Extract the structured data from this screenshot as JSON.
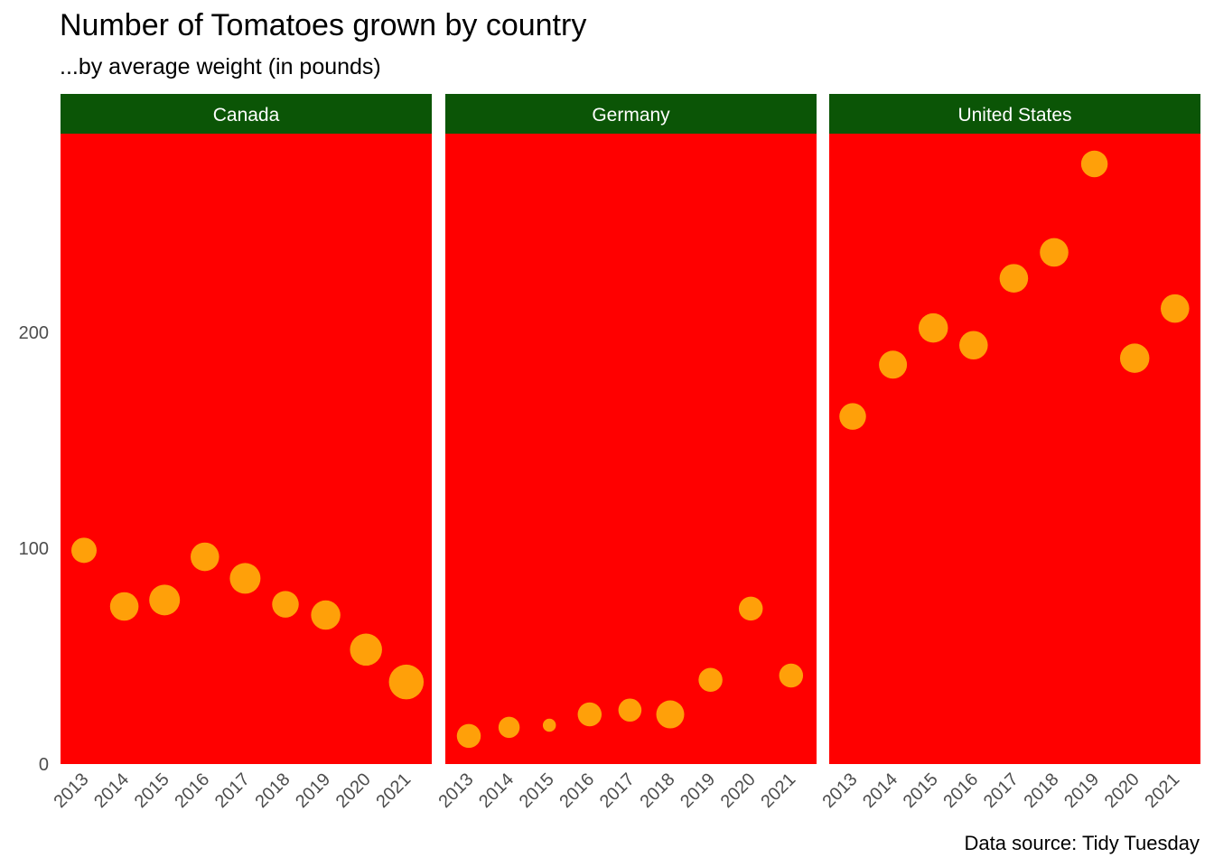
{
  "chart_data": {
    "type": "scatter",
    "title": "Number of Tomatoes grown by country",
    "subtitle": "...by average weight (in pounds)",
    "caption": "Data source: Tidy Tuesday",
    "xlabel": "",
    "ylabel": "",
    "facet_strip_color": "#0b5506",
    "panel_color": "#ff0000",
    "point_color": "#ffa009",
    "ylim": [
      0,
      292
    ],
    "y_ticks": [
      0,
      100,
      200
    ],
    "x": [
      "2013",
      "2014",
      "2015",
      "2016",
      "2017",
      "2018",
      "2019",
      "2020",
      "2021"
    ],
    "grid": false,
    "size_encoding": "relative average weight (no legend shown)",
    "panels": [
      {
        "name": "Canada",
        "values": [
          99,
          73,
          76,
          96,
          86,
          74,
          69,
          53,
          38
        ],
        "sizes": [
          0.6,
          0.72,
          0.8,
          0.72,
          0.8,
          0.65,
          0.75,
          0.85,
          0.95
        ]
      },
      {
        "name": "Germany",
        "values": [
          13,
          17,
          18,
          23,
          25,
          23,
          39,
          72,
          41
        ],
        "sizes": [
          0.55,
          0.45,
          0.15,
          0.55,
          0.52,
          0.7,
          0.55,
          0.55,
          0.55
        ]
      },
      {
        "name": "United States",
        "values": [
          161,
          185,
          202,
          194,
          225,
          237,
          278,
          188,
          211
        ],
        "sizes": [
          0.65,
          0.7,
          0.75,
          0.72,
          0.72,
          0.72,
          0.65,
          0.75,
          0.72
        ]
      }
    ]
  }
}
